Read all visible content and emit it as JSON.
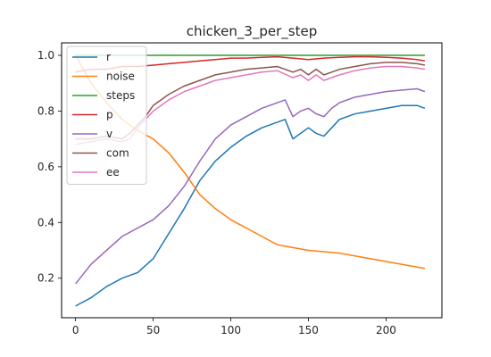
{
  "chart_data": {
    "type": "line",
    "title": "chicken_3_per_step",
    "xlabel": "",
    "ylabel": "",
    "xlim": [
      -9,
      236
    ],
    "ylim": [
      0.058,
      1.045
    ],
    "xticks": [
      0,
      50,
      100,
      150,
      200
    ],
    "yticks": [
      0.2,
      0.4,
      0.6,
      0.8,
      1.0
    ],
    "xtick_labels": [
      "0",
      "50",
      "100",
      "150",
      "200"
    ],
    "ytick_labels": [
      "0.2",
      "0.4",
      "0.6",
      "0.8",
      "1.0"
    ],
    "grid": false,
    "legend_position": "top-left",
    "series": [
      {
        "name": "r",
        "color": "#1f77b4",
        "points": [
          [
            0,
            0.1
          ],
          [
            10,
            0.13
          ],
          [
            20,
            0.17
          ],
          [
            30,
            0.2
          ],
          [
            40,
            0.22
          ],
          [
            50,
            0.27
          ],
          [
            60,
            0.36
          ],
          [
            70,
            0.45
          ],
          [
            80,
            0.55
          ],
          [
            90,
            0.62
          ],
          [
            100,
            0.67
          ],
          [
            110,
            0.71
          ],
          [
            120,
            0.74
          ],
          [
            130,
            0.76
          ],
          [
            135,
            0.77
          ],
          [
            140,
            0.7
          ],
          [
            145,
            0.72
          ],
          [
            150,
            0.74
          ],
          [
            155,
            0.72
          ],
          [
            160,
            0.71
          ],
          [
            165,
            0.74
          ],
          [
            170,
            0.77
          ],
          [
            180,
            0.79
          ],
          [
            190,
            0.8
          ],
          [
            200,
            0.81
          ],
          [
            210,
            0.82
          ],
          [
            220,
            0.82
          ],
          [
            225,
            0.81
          ]
        ]
      },
      {
        "name": "noise",
        "color": "#ff7f0e",
        "points": [
          [
            0,
            1.0
          ],
          [
            10,
            0.9
          ],
          [
            20,
            0.83
          ],
          [
            30,
            0.77
          ],
          [
            40,
            0.73
          ],
          [
            50,
            0.7
          ],
          [
            60,
            0.65
          ],
          [
            70,
            0.58
          ],
          [
            80,
            0.5
          ],
          [
            90,
            0.45
          ],
          [
            100,
            0.41
          ],
          [
            110,
            0.38
          ],
          [
            120,
            0.35
          ],
          [
            130,
            0.32
          ],
          [
            140,
            0.31
          ],
          [
            150,
            0.3
          ],
          [
            160,
            0.295
          ],
          [
            170,
            0.29
          ],
          [
            180,
            0.28
          ],
          [
            190,
            0.27
          ],
          [
            200,
            0.26
          ],
          [
            210,
            0.25
          ],
          [
            220,
            0.24
          ],
          [
            225,
            0.235
          ]
        ]
      },
      {
        "name": "steps",
        "color": "#2ca02c",
        "points": [
          [
            0,
            1.0
          ],
          [
            225,
            1.0
          ]
        ]
      },
      {
        "name": "p",
        "color": "#d62728",
        "points": [
          [
            0,
            0.94
          ],
          [
            10,
            0.95
          ],
          [
            20,
            0.95
          ],
          [
            30,
            0.96
          ],
          [
            40,
            0.96
          ],
          [
            50,
            0.965
          ],
          [
            60,
            0.97
          ],
          [
            70,
            0.975
          ],
          [
            80,
            0.98
          ],
          [
            90,
            0.985
          ],
          [
            100,
            0.99
          ],
          [
            110,
            0.99
          ],
          [
            120,
            0.993
          ],
          [
            130,
            0.995
          ],
          [
            140,
            0.99
          ],
          [
            150,
            0.985
          ],
          [
            160,
            0.99
          ],
          [
            170,
            0.993
          ],
          [
            180,
            0.995
          ],
          [
            190,
            0.995
          ],
          [
            200,
            0.993
          ],
          [
            210,
            0.99
          ],
          [
            220,
            0.985
          ],
          [
            225,
            0.98
          ]
        ]
      },
      {
        "name": "v",
        "color": "#9467bd",
        "points": [
          [
            0,
            0.18
          ],
          [
            10,
            0.25
          ],
          [
            20,
            0.3
          ],
          [
            30,
            0.35
          ],
          [
            40,
            0.38
          ],
          [
            50,
            0.41
          ],
          [
            60,
            0.46
          ],
          [
            70,
            0.53
          ],
          [
            80,
            0.62
          ],
          [
            90,
            0.7
          ],
          [
            100,
            0.75
          ],
          [
            110,
            0.78
          ],
          [
            120,
            0.81
          ],
          [
            130,
            0.83
          ],
          [
            135,
            0.84
          ],
          [
            140,
            0.78
          ],
          [
            145,
            0.8
          ],
          [
            150,
            0.81
          ],
          [
            155,
            0.79
          ],
          [
            160,
            0.78
          ],
          [
            165,
            0.81
          ],
          [
            170,
            0.83
          ],
          [
            180,
            0.85
          ],
          [
            190,
            0.86
          ],
          [
            200,
            0.87
          ],
          [
            210,
            0.875
          ],
          [
            220,
            0.88
          ],
          [
            225,
            0.87
          ]
        ]
      },
      {
        "name": "com",
        "color": "#8c564b",
        "points": [
          [
            0,
            0.7
          ],
          [
            10,
            0.7
          ],
          [
            20,
            0.71
          ],
          [
            30,
            0.7
          ],
          [
            35,
            0.72
          ],
          [
            40,
            0.75
          ],
          [
            45,
            0.78
          ],
          [
            50,
            0.82
          ],
          [
            55,
            0.84
          ],
          [
            60,
            0.86
          ],
          [
            70,
            0.89
          ],
          [
            80,
            0.91
          ],
          [
            90,
            0.93
          ],
          [
            100,
            0.94
          ],
          [
            110,
            0.95
          ],
          [
            120,
            0.955
          ],
          [
            130,
            0.96
          ],
          [
            140,
            0.94
          ],
          [
            145,
            0.95
          ],
          [
            150,
            0.93
          ],
          [
            155,
            0.95
          ],
          [
            160,
            0.93
          ],
          [
            165,
            0.94
          ],
          [
            170,
            0.95
          ],
          [
            180,
            0.96
          ],
          [
            190,
            0.97
          ],
          [
            200,
            0.975
          ],
          [
            210,
            0.975
          ],
          [
            220,
            0.97
          ],
          [
            225,
            0.965
          ]
        ]
      },
      {
        "name": "ee",
        "color": "#e377c2",
        "points": [
          [
            0,
            0.68
          ],
          [
            10,
            0.69
          ],
          [
            20,
            0.7
          ],
          [
            30,
            0.69
          ],
          [
            35,
            0.7
          ],
          [
            40,
            0.74
          ],
          [
            45,
            0.77
          ],
          [
            50,
            0.8
          ],
          [
            55,
            0.82
          ],
          [
            60,
            0.84
          ],
          [
            70,
            0.87
          ],
          [
            80,
            0.89
          ],
          [
            90,
            0.91
          ],
          [
            100,
            0.92
          ],
          [
            110,
            0.93
          ],
          [
            120,
            0.94
          ],
          [
            130,
            0.945
          ],
          [
            140,
            0.92
          ],
          [
            145,
            0.93
          ],
          [
            150,
            0.91
          ],
          [
            155,
            0.93
          ],
          [
            160,
            0.91
          ],
          [
            165,
            0.92
          ],
          [
            170,
            0.93
          ],
          [
            180,
            0.945
          ],
          [
            190,
            0.955
          ],
          [
            200,
            0.96
          ],
          [
            210,
            0.96
          ],
          [
            220,
            0.955
          ],
          [
            225,
            0.95
          ]
        ]
      }
    ]
  }
}
